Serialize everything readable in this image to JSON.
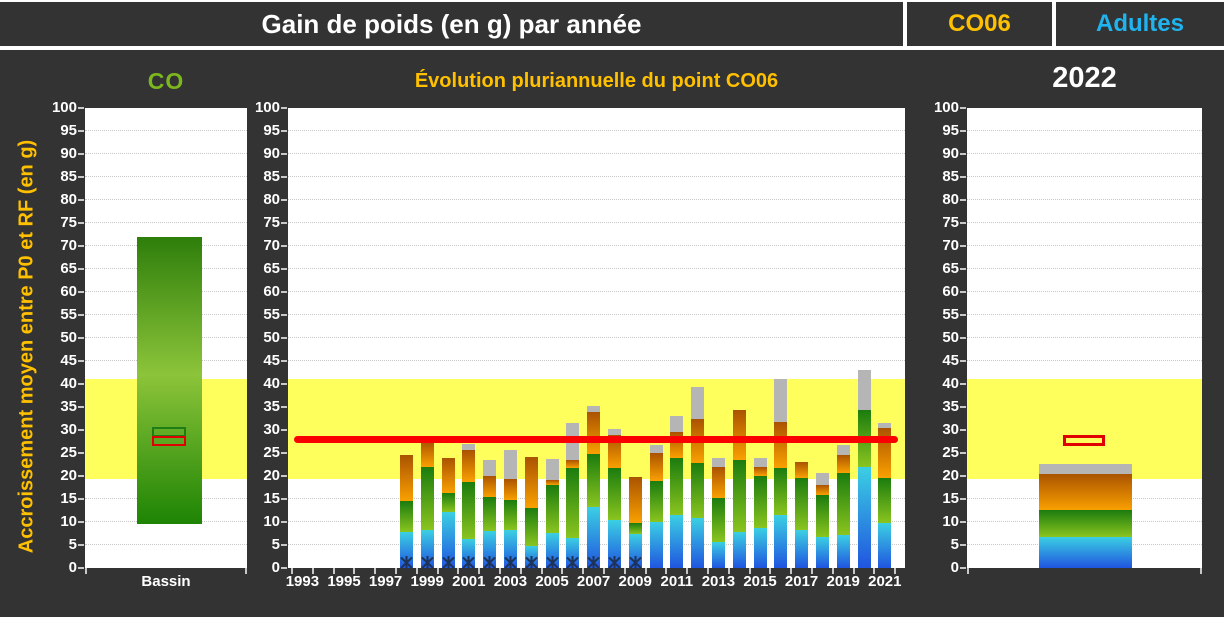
{
  "header": {
    "title": "Gain de poids (en g) par année",
    "point_code": "CO06",
    "population": "Adultes"
  },
  "axis": {
    "label": "Accroissement moyen entre P0 et RF (en g)",
    "ylim": [
      0,
      100
    ],
    "ytick_step": 5
  },
  "reference": {
    "band_low": 19.4,
    "band_high": 41,
    "target_line_value": 28
  },
  "colors": {
    "background": "#333333",
    "plot_background": "#ffffff",
    "gridline": "#c9c9c9",
    "band_yellow": "#fefe5c",
    "red_line": "#fb0000",
    "red_box": "#e10000",
    "green_box": "#1e7d14",
    "gold_text": "#ffc000",
    "co_green_text": "#7cb71e",
    "adultes_blue_text": "#1fb4f0",
    "bar_blue_bottom": "#2055e0",
    "bar_blue_top": "#3bcfe2",
    "bar_green_bottom": "#8ac41f",
    "bar_green_top": "#1b7c0e",
    "bar_orange_bottom": "#f9a000",
    "bar_orange_top": "#aa5300",
    "bar_gray": "#b5b5b5",
    "bassin_bar_top": "#2e7e0b",
    "bassin_bar_mid": "#8cc43a",
    "bassin_bar_bottom": "#1e8404",
    "marker_navy": "#1d3357",
    "tick_text": "#ffffff"
  },
  "chart_data": [
    {
      "id": "bassin",
      "type": "bar",
      "title": "CO",
      "categories": [
        "Bassin"
      ],
      "floating_bar": {
        "low": 9.5,
        "high": 72
      },
      "green_box": {
        "low": 29.1,
        "high": 30.7
      },
      "red_box": {
        "low": 27.2,
        "high": 28.7
      },
      "ylim": [
        0,
        100
      ],
      "grid": true,
      "legend": "none"
    },
    {
      "id": "evolution",
      "type": "bar",
      "subtype": "stacked",
      "title": "Évolution pluriannuelle du point CO06",
      "x": [
        1993,
        1994,
        1995,
        1996,
        1997,
        1998,
        1999,
        2000,
        2001,
        2002,
        2003,
        2004,
        2005,
        2006,
        2007,
        2008,
        2009,
        2010,
        2011,
        2012,
        2013,
        2014,
        2015,
        2016,
        2017,
        2018,
        2019,
        2020,
        2021
      ],
      "x_tick_labels": [
        "1993",
        "1995",
        "1997",
        "1999",
        "2001",
        "2003",
        "2005",
        "2007",
        "2009",
        "2011",
        "2013",
        "2015",
        "2017",
        "2019",
        "2021"
      ],
      "series": [
        {
          "name": "blue",
          "values": [
            0,
            0,
            0,
            0,
            0,
            7.8,
            8.2,
            12.1,
            6.3,
            8.0,
            8.2,
            4.8,
            7.6,
            6.5,
            13.3,
            10.5,
            7.5,
            10.0,
            11.5,
            10.8,
            5.7,
            7.9,
            8.6,
            11.5,
            8.3,
            6.8,
            7.2,
            22.0,
            9.8
          ]
        },
        {
          "name": "green",
          "values": [
            0,
            0,
            0,
            0,
            0,
            6.7,
            13.8,
            4.3,
            12.3,
            7.5,
            6.6,
            8.2,
            10.5,
            15.2,
            11.4,
            11.3,
            2.2,
            9.0,
            12.5,
            12.0,
            9.6,
            15.6,
            11.3,
            10.2,
            11.2,
            9.1,
            13.4,
            12.3,
            9.7
          ]
        },
        {
          "name": "orange",
          "values": [
            0,
            0,
            0,
            0,
            0,
            10.1,
            5.6,
            7.6,
            7.1,
            4.6,
            4.6,
            11.1,
            1.1,
            1.8,
            9.3,
            7.2,
            10.0,
            6.0,
            5.5,
            9.6,
            6.7,
            10.8,
            2.1,
            10.1,
            3.6,
            2.1,
            4.0,
            0,
            11.0
          ]
        },
        {
          "name": "gray",
          "values": [
            0,
            0,
            0,
            0,
            0,
            0,
            0,
            0,
            1.3,
            3.3,
            6.3,
            0,
            4.4,
            8.1,
            1.3,
            1.2,
            0,
            1.8,
            3.5,
            7.0,
            2.0,
            0,
            2.0,
            9.4,
            0,
            2.6,
            2.1,
            8.7,
            1.0
          ]
        }
      ],
      "red_line": 28,
      "marker_years": [
        1998,
        1999,
        2000,
        2001,
        2002,
        2003,
        2004,
        2005,
        2006,
        2007,
        2008,
        2009
      ],
      "ylim": [
        0,
        100
      ],
      "grid": true,
      "legend": "none"
    },
    {
      "id": "y2022",
      "type": "bar",
      "subtype": "stacked",
      "title": "2022",
      "categories": [
        "2022"
      ],
      "segments": {
        "blue": 6.8,
        "green": 5.8,
        "orange": 7.8,
        "gray": 2.2
      },
      "red_box": {
        "low": 27.1,
        "high": 28.9
      },
      "ylim": [
        0,
        100
      ],
      "grid": true,
      "legend": "none"
    }
  ]
}
